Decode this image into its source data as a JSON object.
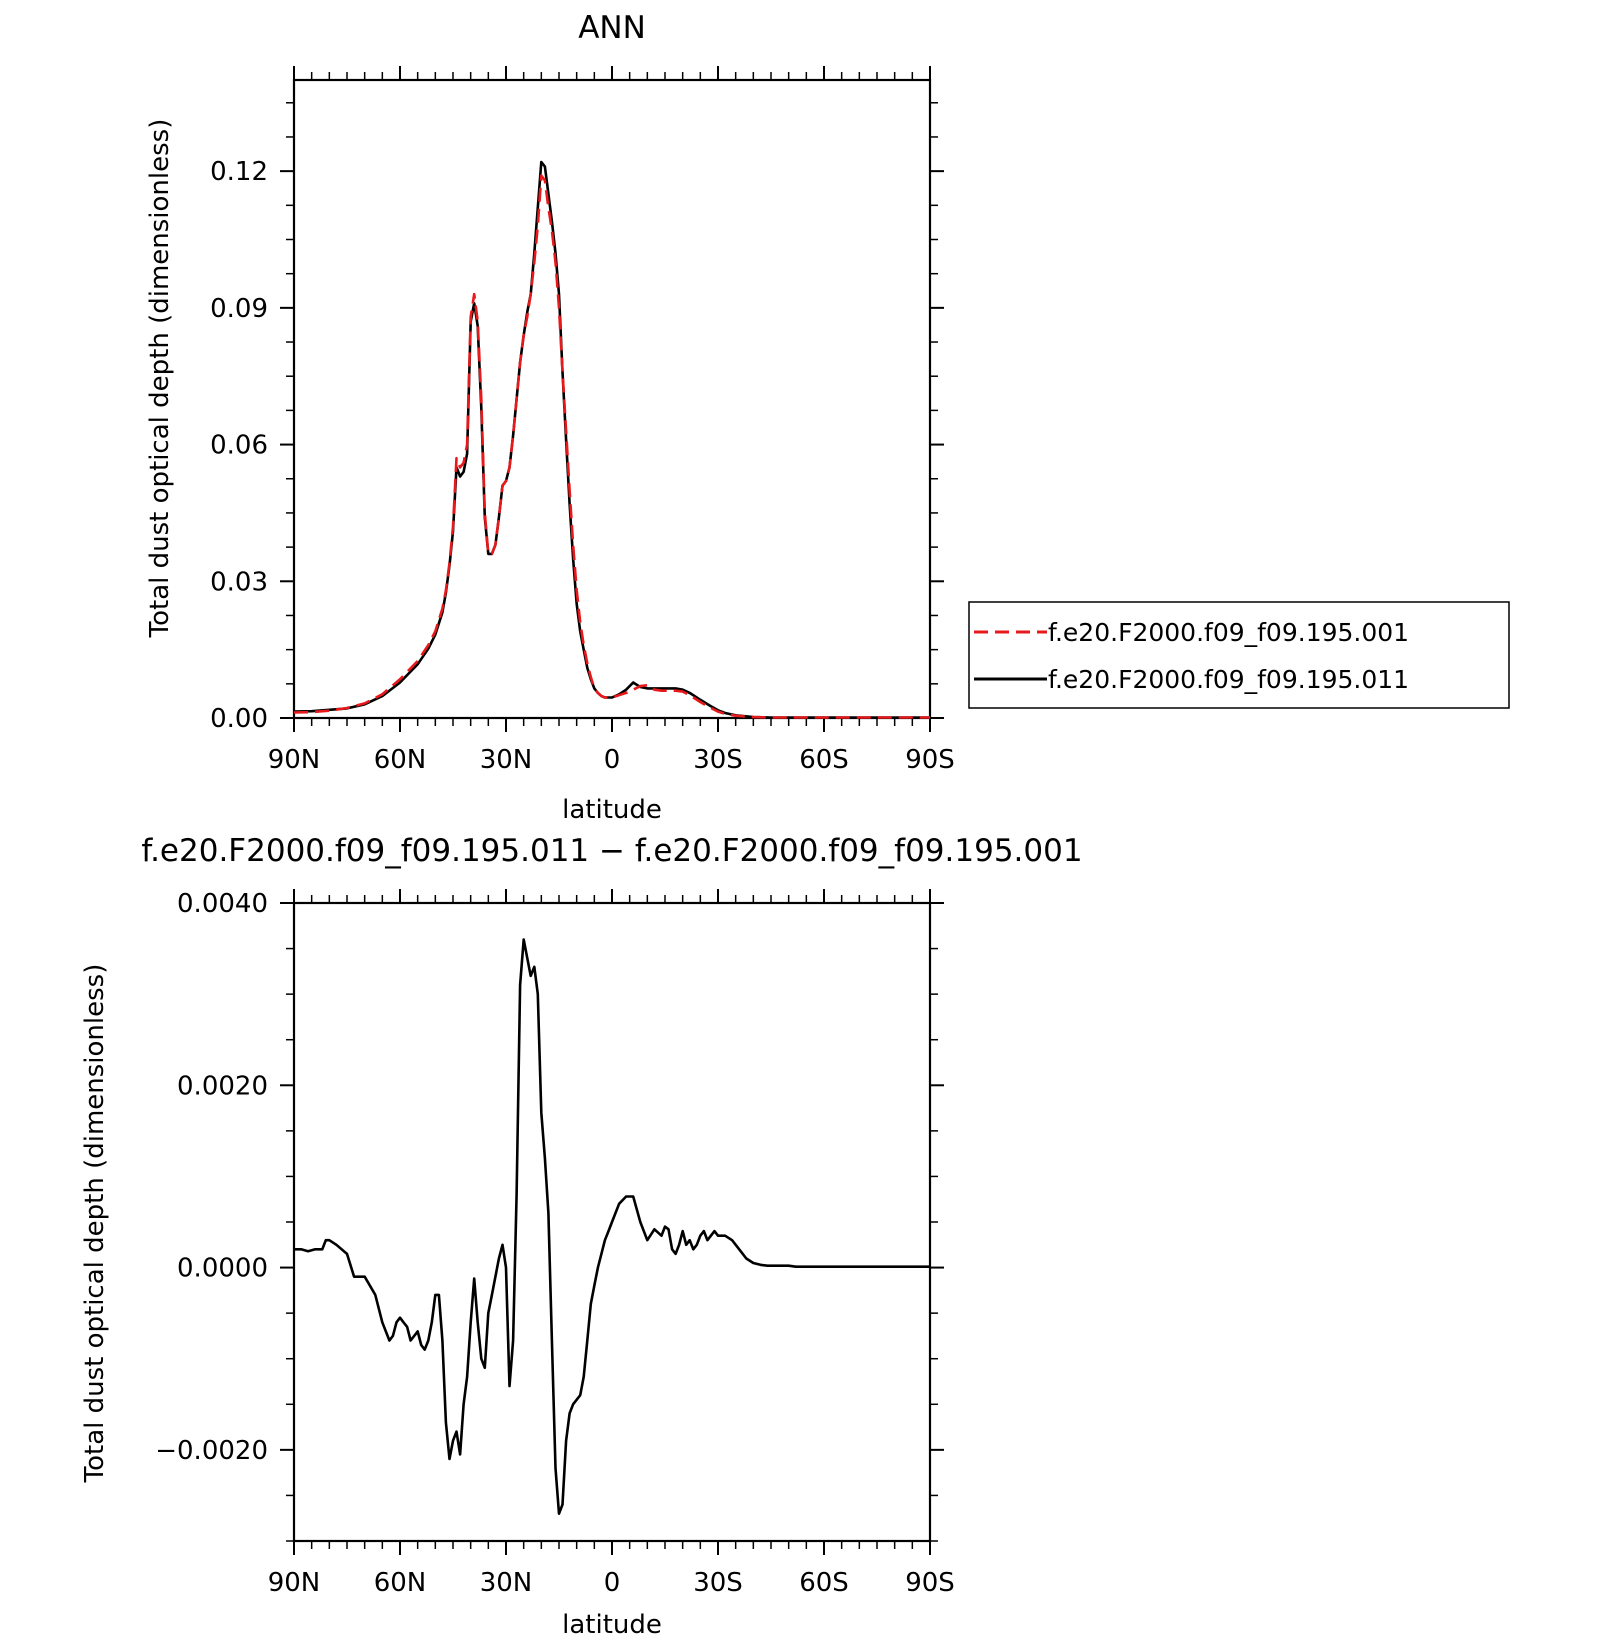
{
  "chart_data": [
    {
      "type": "line",
      "title": "ANN",
      "xlabel": "latitude",
      "ylabel": "Total dust optical depth (dimensionless)",
      "xlim": [
        90,
        -90
      ],
      "ylim": [
        0.0,
        0.14
      ],
      "x_ticks": [
        90,
        60,
        30,
        0,
        -30,
        -60,
        -90
      ],
      "x_tick_labels": [
        "90N",
        "60N",
        "30N",
        "0",
        "30S",
        "60S",
        "90S"
      ],
      "y_ticks": [
        0.0,
        0.03,
        0.06,
        0.09,
        0.12
      ],
      "y_tick_labels": [
        "0.00",
        "0.03",
        "0.06",
        "0.09",
        "0.12"
      ],
      "grid": false,
      "legend": "right",
      "x": [
        90,
        85,
        80,
        75,
        70,
        65,
        60,
        55,
        52,
        50,
        48,
        47,
        46,
        45,
        44,
        43,
        42,
        41,
        40,
        39,
        38,
        37,
        36,
        35,
        34,
        33,
        32,
        31,
        30,
        29,
        28,
        27,
        26,
        25,
        24,
        23,
        22,
        21,
        20,
        19,
        18,
        17,
        16,
        15,
        14,
        13,
        12,
        11,
        10,
        9,
        8,
        7,
        6,
        5,
        4,
        3,
        2,
        1,
        0,
        -2,
        -4,
        -6,
        -8,
        -10,
        -12,
        -14,
        -15,
        -16,
        -17,
        -18,
        -20,
        -22,
        -25,
        -28,
        -30,
        -32,
        -35,
        -40,
        -45,
        -50,
        -55,
        -60,
        -70,
        -80,
        -90
      ],
      "series": [
        {
          "name": "f.e20.F2000.f09_f09.195.001",
          "color": "#e8191b",
          "dash": "dashed",
          "values": [
            0.0012,
            0.0013,
            0.0016,
            0.0022,
            0.0032,
            0.0052,
            0.0085,
            0.0125,
            0.016,
            0.019,
            0.024,
            0.028,
            0.034,
            0.042,
            0.057,
            0.055,
            0.056,
            0.06,
            0.088,
            0.093,
            0.087,
            0.07,
            0.045,
            0.036,
            0.036,
            0.038,
            0.044,
            0.051,
            0.052,
            0.055,
            0.062,
            0.07,
            0.078,
            0.084,
            0.088,
            0.093,
            0.1,
            0.108,
            0.119,
            0.118,
            0.112,
            0.107,
            0.1,
            0.09,
            0.076,
            0.063,
            0.05,
            0.038,
            0.028,
            0.021,
            0.016,
            0.012,
            0.009,
            0.0065,
            0.0055,
            0.0048,
            0.0045,
            0.0045,
            0.0045,
            0.005,
            0.0055,
            0.0062,
            0.007,
            0.0072,
            0.0062,
            0.006,
            0.006,
            0.006,
            0.006,
            0.006,
            0.0058,
            0.005,
            0.0035,
            0.0022,
            0.0014,
            0.0009,
            0.0005,
            0.0002,
            0.0001,
            0.0001,
            0.0001,
            0.0001,
            0.0001,
            0.0001,
            0.0001
          ]
        },
        {
          "name": "f.e20.F2000.f09_f09.195.011",
          "color": "#000000",
          "dash": "solid",
          "values": [
            0.0014,
            0.0015,
            0.0018,
            0.0021,
            0.003,
            0.0048,
            0.0078,
            0.0118,
            0.0152,
            0.0183,
            0.0232,
            0.0275,
            0.0335,
            0.041,
            0.055,
            0.053,
            0.054,
            0.058,
            0.087,
            0.091,
            0.086,
            0.068,
            0.044,
            0.036,
            0.036,
            0.038,
            0.044,
            0.051,
            0.052,
            0.055,
            0.062,
            0.07,
            0.078,
            0.084,
            0.089,
            0.093,
            0.102,
            0.112,
            0.122,
            0.121,
            0.115,
            0.109,
            0.102,
            0.093,
            0.076,
            0.061,
            0.047,
            0.035,
            0.025,
            0.019,
            0.015,
            0.011,
            0.0085,
            0.0065,
            0.0055,
            0.0048,
            0.0045,
            0.0045,
            0.0045,
            0.0052,
            0.0062,
            0.0078,
            0.0068,
            0.0065,
            0.0065,
            0.0065,
            0.0065,
            0.0065,
            0.0065,
            0.0065,
            0.0062,
            0.0055,
            0.004,
            0.0026,
            0.0017,
            0.0011,
            0.0006,
            0.0002,
            0.0001,
            0.0001,
            0.0001,
            0.0001,
            0.0001,
            0.0001,
            0.0001
          ]
        }
      ]
    },
    {
      "type": "line",
      "title": "f.e20.F2000.f09_f09.195.011 − f.e20.F2000.f09_f09.195.001",
      "xlabel": "latitude",
      "ylabel": "Total dust optical depth (dimensionless)",
      "xlim": [
        90,
        -90
      ],
      "ylim": [
        -0.003,
        0.004
      ],
      "x_ticks": [
        90,
        60,
        30,
        0,
        -30,
        -60,
        -90
      ],
      "x_tick_labels": [
        "90N",
        "60N",
        "30N",
        "0",
        "30S",
        "60S",
        "90S"
      ],
      "y_ticks": [
        -0.002,
        0.0,
        0.002,
        0.004
      ],
      "y_tick_labels": [
        "−0.0020",
        "0.0000",
        "0.0020",
        "0.0040"
      ],
      "grid": false,
      "x": [
        90,
        88,
        86,
        84,
        82,
        81,
        80,
        78,
        75,
        73,
        72,
        70,
        67,
        65,
        63,
        62,
        61,
        60,
        59,
        58,
        57,
        55,
        54,
        53,
        52,
        51,
        50,
        49,
        48,
        47,
        46,
        45,
        44,
        43,
        42,
        41,
        40,
        39,
        38,
        37,
        36,
        35,
        34,
        33,
        32,
        31,
        30,
        29,
        28,
        27,
        26,
        25,
        24,
        23,
        22,
        21,
        20,
        19,
        18,
        17,
        16,
        15,
        14,
        13,
        12,
        11,
        10,
        9,
        8,
        7,
        6,
        5,
        4,
        3,
        2,
        1,
        0,
        -2,
        -4,
        -6,
        -8,
        -10,
        -12,
        -14,
        -15,
        -16,
        -17,
        -18,
        -19,
        -20,
        -21,
        -22,
        -23,
        -24,
        -25,
        -26,
        -27,
        -28,
        -29,
        -30,
        -32,
        -34,
        -36,
        -38,
        -40,
        -42,
        -44,
        -46,
        -48,
        -50,
        -52,
        -55,
        -60,
        -70,
        -80,
        -90
      ],
      "values": [
        0.0002,
        0.0002,
        0.00018,
        0.0002,
        0.0002,
        0.0003,
        0.0003,
        0.00025,
        0.00015,
        -0.0001,
        -0.0001,
        -0.0001,
        -0.0003,
        -0.0006,
        -0.0008,
        -0.00075,
        -0.0006,
        -0.00055,
        -0.0006,
        -0.00065,
        -0.0008,
        -0.0007,
        -0.00085,
        -0.0009,
        -0.0008,
        -0.0006,
        -0.0003,
        -0.0003,
        -0.0008,
        -0.0017,
        -0.0021,
        -0.0019,
        -0.0018,
        -0.00205,
        -0.0015,
        -0.0012,
        -0.0006,
        -0.00012,
        -0.0006,
        -0.001,
        -0.0011,
        -0.0005,
        -0.0003,
        -0.0001,
        0.0001,
        0.00025,
        0.0,
        -0.0013,
        -0.0008,
        0.0008,
        0.0031,
        0.0036,
        0.0034,
        0.0032,
        0.0033,
        0.003,
        0.0017,
        0.0012,
        0.0006,
        -0.0008,
        -0.0022,
        -0.0027,
        -0.0026,
        -0.0019,
        -0.0016,
        -0.0015,
        -0.00145,
        -0.0014,
        -0.0012,
        -0.0008,
        -0.0004,
        -0.0002,
        0.0,
        0.00015,
        0.0003,
        0.0004,
        0.0005,
        0.0007,
        0.00078,
        0.00078,
        0.0005,
        0.0003,
        0.00042,
        0.00035,
        0.00045,
        0.00042,
        0.0002,
        0.00015,
        0.00025,
        0.0004,
        0.00025,
        0.0003,
        0.0002,
        0.00025,
        0.00035,
        0.0004,
        0.0003,
        0.00035,
        0.0004,
        0.00035,
        0.00035,
        0.0003,
        0.0002,
        0.0001,
        5e-05,
        3e-05,
        2e-05,
        2e-05,
        2e-05,
        2e-05,
        1e-05,
        1e-05,
        1e-05,
        1e-05,
        1e-05,
        1e-05
      ]
    }
  ]
}
